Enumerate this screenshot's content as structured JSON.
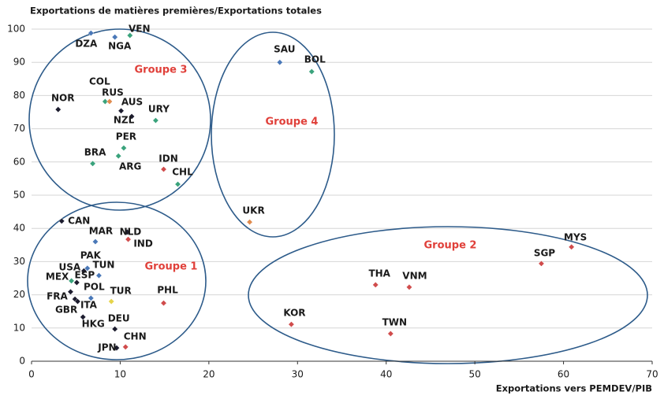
{
  "chart_data": {
    "type": "scatter",
    "title": "Exportations de matières premières/Exportations totales",
    "x_label": "Exportations vers PEMDEV/PIB",
    "xlim": [
      0,
      70
    ],
    "xticks": [
      0,
      10,
      20,
      30,
      40,
      50,
      60,
      70
    ],
    "ylim": [
      0,
      100
    ],
    "yticks": [
      0,
      10,
      20,
      30,
      40,
      50,
      60,
      70,
      80,
      90,
      100
    ],
    "grid": true,
    "annotations": [
      "Groupe 1",
      "Groupe 2",
      "Groupe 3",
      "Groupe 4"
    ],
    "points": [
      {
        "label": "DZA",
        "x": 6.7,
        "y": 98.8,
        "color": "#4a78b8"
      },
      {
        "label": "NGA",
        "x": 9.4,
        "y": 97.6,
        "color": "#4a78b8"
      },
      {
        "label": "VEN",
        "x": 11.1,
        "y": 98.1,
        "color": "#3aa37c"
      },
      {
        "label": "SAU",
        "x": 28.0,
        "y": 90.0,
        "color": "#4a78b8"
      },
      {
        "label": "BOL",
        "x": 31.6,
        "y": 87.2,
        "color": "#3aa37c"
      },
      {
        "label": "COL",
        "x": 8.3,
        "y": 78.2,
        "color": "#3aa37c"
      },
      {
        "label": "RUS",
        "x": 8.8,
        "y": 78.2,
        "color": "#e08b4e"
      },
      {
        "label": "NOR",
        "x": 3.0,
        "y": 75.8,
        "color": "#1c1c2e"
      },
      {
        "label": "AUS",
        "x": 10.1,
        "y": 75.4,
        "color": "#1c1c2e"
      },
      {
        "label": "NZL",
        "x": 11.3,
        "y": 73.7,
        "color": "#1c1c2e"
      },
      {
        "label": "URY",
        "x": 14.0,
        "y": 72.5,
        "color": "#3aa37c"
      },
      {
        "label": "PER",
        "x": 10.4,
        "y": 64.2,
        "color": "#3aa37c"
      },
      {
        "label": "BRA",
        "x": 6.9,
        "y": 59.5,
        "color": "#3aa37c"
      },
      {
        "label": "ARG",
        "x": 9.8,
        "y": 61.8,
        "color": "#3aa37c"
      },
      {
        "label": "IDN",
        "x": 14.9,
        "y": 57.8,
        "color": "#d04c4c"
      },
      {
        "label": "CHL",
        "x": 16.5,
        "y": 53.3,
        "color": "#3aa37c"
      },
      {
        "label": "UKR",
        "x": 24.6,
        "y": 41.9,
        "color": "#e08b4e"
      },
      {
        "label": "CAN",
        "x": 3.4,
        "y": 42.2,
        "color": "#1c1c2e"
      },
      {
        "label": "NLD",
        "x": 10.8,
        "y": 38.9,
        "color": "#1c1c2e"
      },
      {
        "label": "IND",
        "x": 10.9,
        "y": 36.7,
        "color": "#d04c4c"
      },
      {
        "label": "MAR",
        "x": 7.2,
        "y": 36.0,
        "color": "#4a78b8"
      },
      {
        "label": "PAK",
        "x": 6.3,
        "y": 28.0,
        "color": "#4a78b8"
      },
      {
        "label": "USA",
        "x": 5.9,
        "y": 27.2,
        "color": "#1c1c2e"
      },
      {
        "label": "TUN",
        "x": 7.6,
        "y": 25.8,
        "color": "#4a78b8"
      },
      {
        "label": "MEX",
        "x": 4.5,
        "y": 24.2,
        "color": "#3aa37c"
      },
      {
        "label": "ESP",
        "x": 5.1,
        "y": 23.7,
        "color": "#1c1c2e"
      },
      {
        "label": "POL",
        "x": 6.7,
        "y": 19.0,
        "color": "#4a78b8"
      },
      {
        "label": "TUR",
        "x": 9.0,
        "y": 18.0,
        "color": "#e6d44a"
      },
      {
        "label": "FRA",
        "x": 4.4,
        "y": 20.9,
        "color": "#1c1c2e"
      },
      {
        "label": "GBR",
        "x": 4.9,
        "y": 18.7,
        "color": "#1c1c2e"
      },
      {
        "label": "ITA",
        "x": 5.2,
        "y": 18.0,
        "color": "#1c1c2e"
      },
      {
        "label": "PHL",
        "x": 14.9,
        "y": 17.5,
        "color": "#d04c4c"
      },
      {
        "label": "HKG",
        "x": 5.8,
        "y": 13.3,
        "color": "#1c1c2e"
      },
      {
        "label": "DEU",
        "x": 9.4,
        "y": 9.7,
        "color": "#1c1c2e"
      },
      {
        "label": "CHN",
        "x": 10.6,
        "y": 4.3,
        "color": "#d04c4c"
      },
      {
        "label": "JPN",
        "x": 9.6,
        "y": 4.0,
        "color": "#1c1c2e"
      },
      {
        "label": "THA",
        "x": 38.8,
        "y": 23.0,
        "color": "#d04c4c"
      },
      {
        "label": "VNM",
        "x": 42.6,
        "y": 22.3,
        "color": "#d04c4c"
      },
      {
        "label": "MYS",
        "x": 60.9,
        "y": 34.4,
        "color": "#d04c4c"
      },
      {
        "label": "SGP",
        "x": 57.5,
        "y": 29.4,
        "color": "#d04c4c"
      },
      {
        "label": "KOR",
        "x": 29.3,
        "y": 11.1,
        "color": "#d04c4c"
      },
      {
        "label": "TWN",
        "x": 40.5,
        "y": 8.3,
        "color": "#d04c4c"
      }
    ]
  }
}
